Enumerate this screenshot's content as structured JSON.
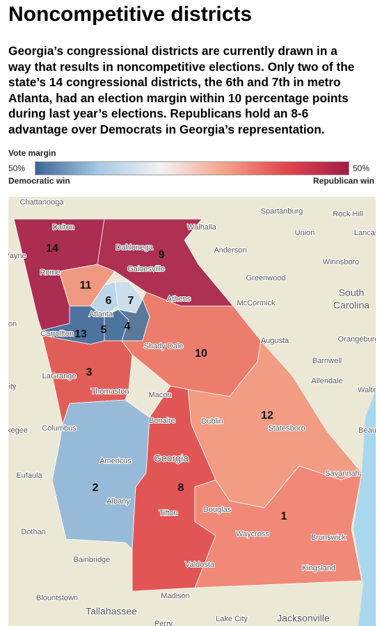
{
  "header": {
    "title": "Noncompetitive districts",
    "subtitle_lines": [
      "Georgia’s congressional districts are currently drawn in a",
      "way that results in noncompetitive elections. Only two of the",
      "state’s 14 congressional districts, the 6th and 7th in metro",
      "Atlanta, had an election margin within 10 percentage points",
      "during  last year’s elections. Republicans hold an 8-6",
      "advantage over Democrats in Georgia’s representation."
    ]
  },
  "legend": {
    "title": "Vote margin",
    "left_value": "50%",
    "right_value": "50%",
    "left_label": "Democratic win",
    "right_label": "Republican win",
    "colors": [
      "#3a6699",
      "#a7c8e3",
      "#f2f2f2",
      "#f5a48c",
      "#e0464c",
      "#a51c45"
    ]
  },
  "districts": [
    {
      "label": "14",
      "color": "#a51c45"
    },
    {
      "label": "9",
      "color": "#a82048"
    },
    {
      "label": "11",
      "color": "#f19178"
    },
    {
      "label": "6",
      "color": "#b7d3e9"
    },
    {
      "label": "7",
      "color": "#c9dced"
    },
    {
      "label": "13",
      "color": "#40689a"
    },
    {
      "label": "5",
      "color": "#3e6998"
    },
    {
      "label": "4",
      "color": "#4d6f96"
    },
    {
      "label": "3",
      "color": "#e0514d"
    },
    {
      "label": "10",
      "color": "#ec7363"
    },
    {
      "label": "12",
      "color": "#f2957d"
    },
    {
      "label": "2",
      "color": "#8fb5d8"
    },
    {
      "label": "8",
      "color": "#e1484a"
    },
    {
      "label": "1",
      "color": "#f08070"
    }
  ],
  "places": [
    "Chattanooga",
    "Dalton",
    "Walhalla",
    "Spartanburg",
    "Rock Hill",
    "Union",
    "Lancast",
    "Payne",
    "Dahlonega",
    "Anderson",
    "Winnsboro",
    "Gainesville",
    "Rome",
    "Greenwood",
    "South",
    "Carolina",
    "McCormick",
    "Athens",
    "Atlanta",
    "on",
    "Carrollton",
    "Augusta",
    "Orangeburg",
    "Shady Dale",
    "Barnwell",
    "LaGrange",
    "Allendale",
    "ity",
    "Walte",
    "Thomaston",
    "Macon",
    "kegee",
    "Columbus",
    "Bonaire",
    "Dublin",
    "Statesboro",
    "Beau",
    "Americus",
    "Georgia",
    "Eufaula",
    "Savannah",
    "Albany",
    "Douglas",
    "Tifton",
    "Dothan",
    "Waycross",
    "Brunswick",
    "Bainbridge",
    "Kingsland",
    "Valdosta",
    "Madison",
    "Blountstown",
    "Tallahassee",
    "Perry",
    "Lake City",
    "Jacksonville"
  ]
}
